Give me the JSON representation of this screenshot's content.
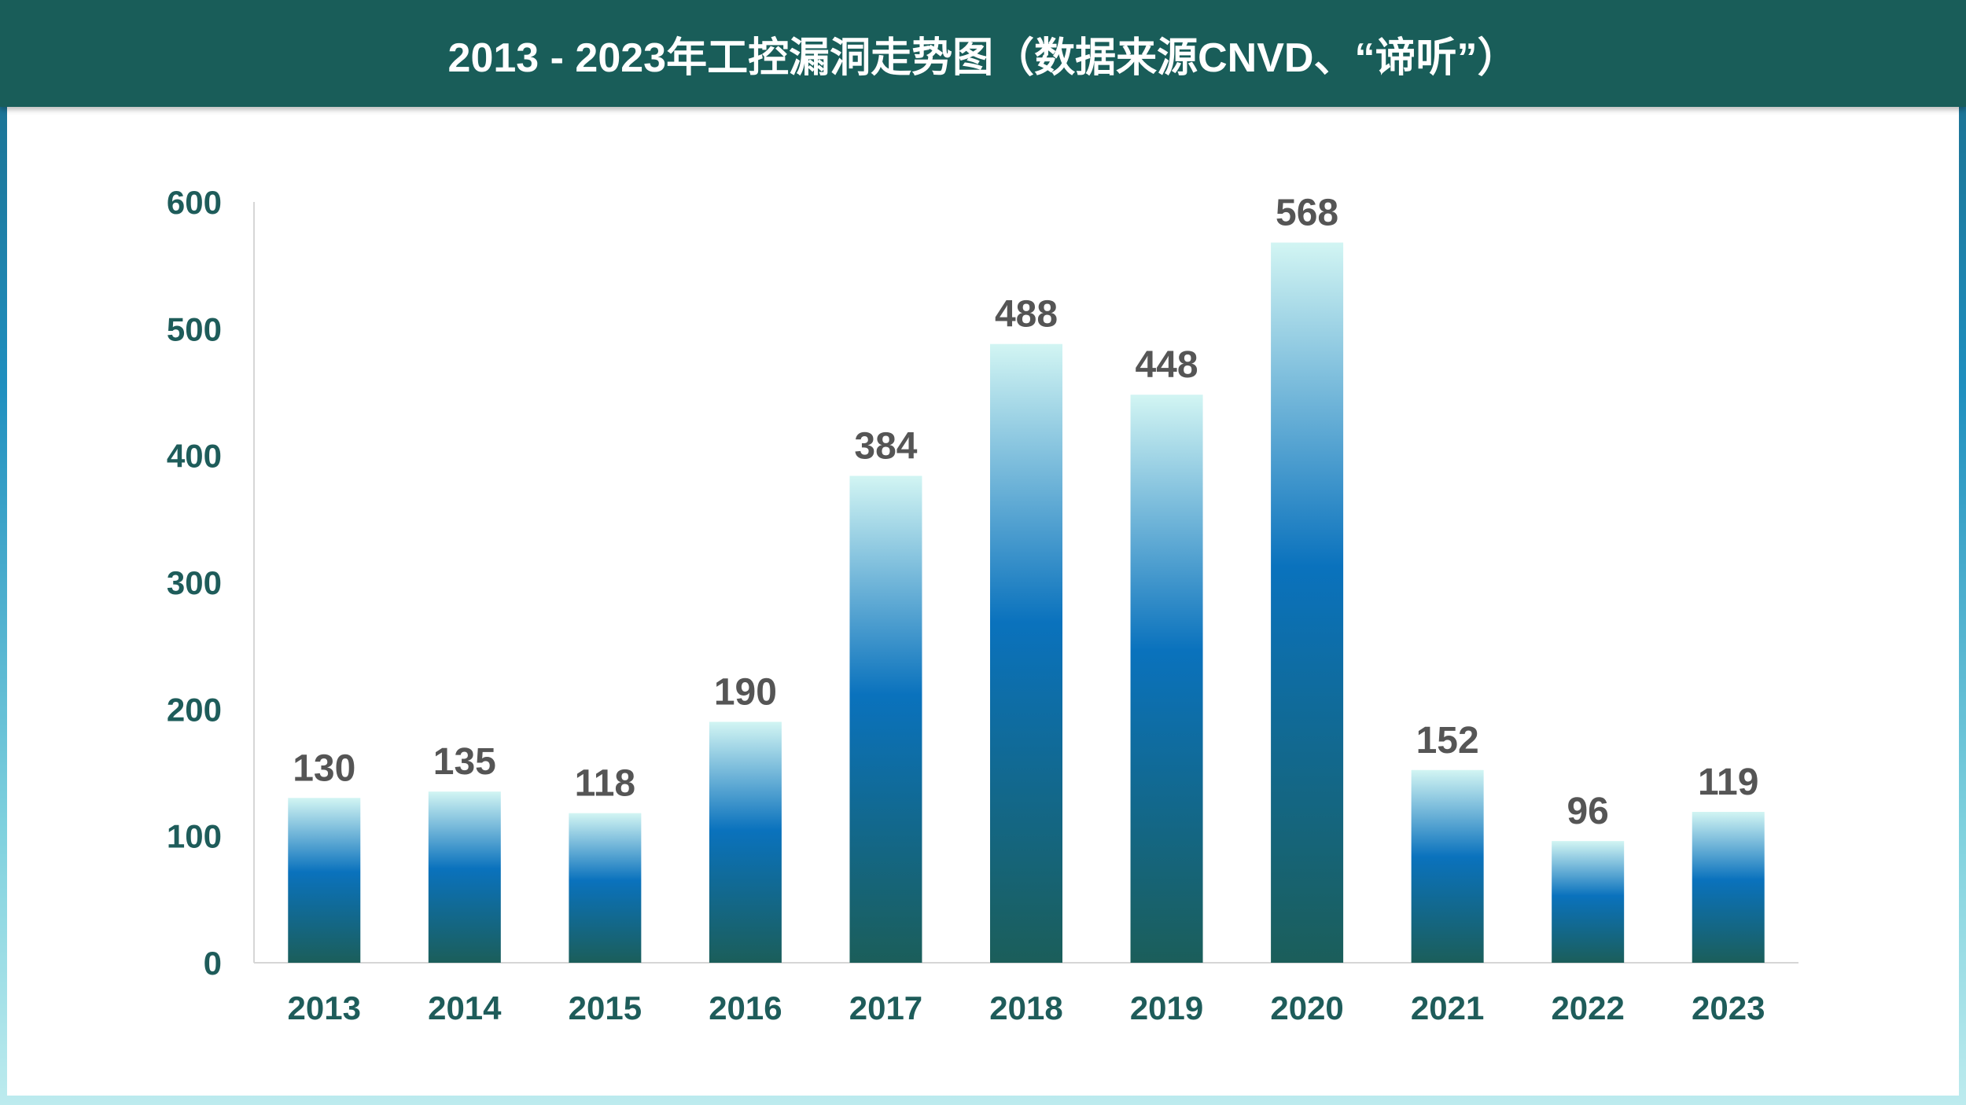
{
  "title": "2013 - 2023年工控漏洞走势图（数据来源CNVD、“谛听”）",
  "colors": {
    "header": "#195d59",
    "axis_text": "#1e5c5a",
    "data_label": "#555555",
    "bar_top": "#d2f5f3",
    "bar_mid": "#0a72bd",
    "bar_bottom": "#1b5e5a"
  },
  "chart_data": {
    "type": "bar",
    "title": "2013 - 2023年工控漏洞走势图（数据来源CNVD、“谛听”）",
    "categories": [
      "2013",
      "2014",
      "2015",
      "2016",
      "2017",
      "2018",
      "2019",
      "2020",
      "2021",
      "2022",
      "2023"
    ],
    "values": [
      130,
      135,
      118,
      190,
      384,
      488,
      448,
      568,
      152,
      96,
      119
    ],
    "ylim": [
      0,
      600
    ],
    "yticks": [
      0,
      100,
      200,
      300,
      400,
      500,
      600
    ],
    "xlabel": "",
    "ylabel": "",
    "grid": false,
    "legend": "none",
    "data_labels": true
  }
}
